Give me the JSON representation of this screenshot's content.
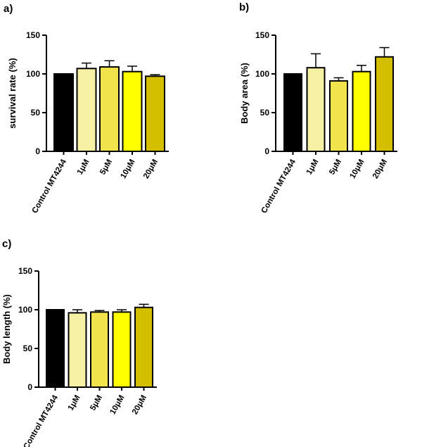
{
  "chart_data": [
    {
      "panel": "a)",
      "type": "bar",
      "ylabel": "survival rate (%)",
      "ylim": [
        0,
        150
      ],
      "yticks": [
        "0",
        "50",
        "100",
        "150"
      ],
      "categories": [
        "Control MT4244",
        "1μM",
        "5μM",
        "10μM",
        "20μM"
      ],
      "values": [
        100,
        107,
        109,
        103,
        97
      ],
      "errors": [
        0,
        7,
        8,
        7,
        2
      ],
      "colors": [
        "#000000",
        "#F6F1A4",
        "#F0E34C",
        "#FFFF00",
        "#D4BE00"
      ]
    },
    {
      "panel": "b)",
      "type": "bar",
      "ylabel": "Body area (%)",
      "ylim": [
        0,
        150
      ],
      "yticks": [
        "0",
        "50",
        "100",
        "150"
      ],
      "categories": [
        "Control MT4244",
        "1μM",
        "5μM",
        "10μM",
        "20μM"
      ],
      "values": [
        100,
        108,
        91,
        103,
        122
      ],
      "errors": [
        0,
        18,
        4,
        8,
        12
      ],
      "colors": [
        "#000000",
        "#F6F1A4",
        "#F0E34C",
        "#FFFF00",
        "#D4BE00"
      ]
    },
    {
      "panel": "c)",
      "type": "bar",
      "ylabel": "Body length (%)",
      "ylim": [
        0,
        150
      ],
      "yticks": [
        "0",
        "50",
        "100",
        "150"
      ],
      "categories": [
        "Control MT4244",
        "1μM",
        "5μM",
        "10μM",
        "20μM"
      ],
      "values": [
        100,
        96,
        97,
        97,
        103
      ],
      "errors": [
        0,
        4,
        2,
        3,
        4
      ],
      "colors": [
        "#000000",
        "#F6F1A4",
        "#F0E34C",
        "#FFFF00",
        "#D4BE00"
      ]
    }
  ]
}
